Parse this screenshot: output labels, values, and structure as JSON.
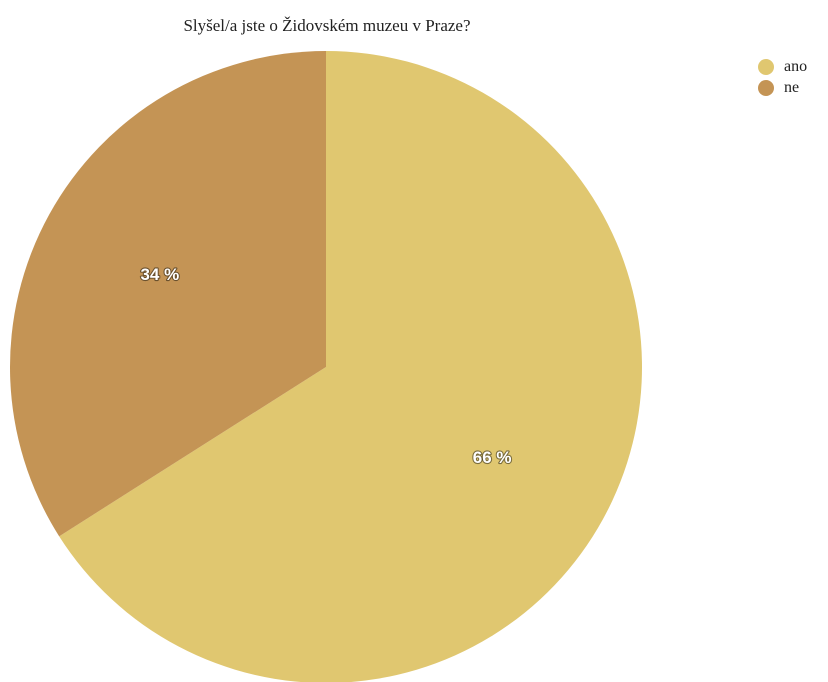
{
  "chart_data": {
    "type": "pie",
    "title": "Slyšel/a jste o Židovském muzeu v Praze?",
    "categories": [
      "ano",
      "ne"
    ],
    "values": [
      66,
      34
    ],
    "value_labels": [
      "66 %",
      "34 %"
    ],
    "colors": [
      "#e0c770",
      "#c49455"
    ],
    "legend_placement": "top-right"
  }
}
